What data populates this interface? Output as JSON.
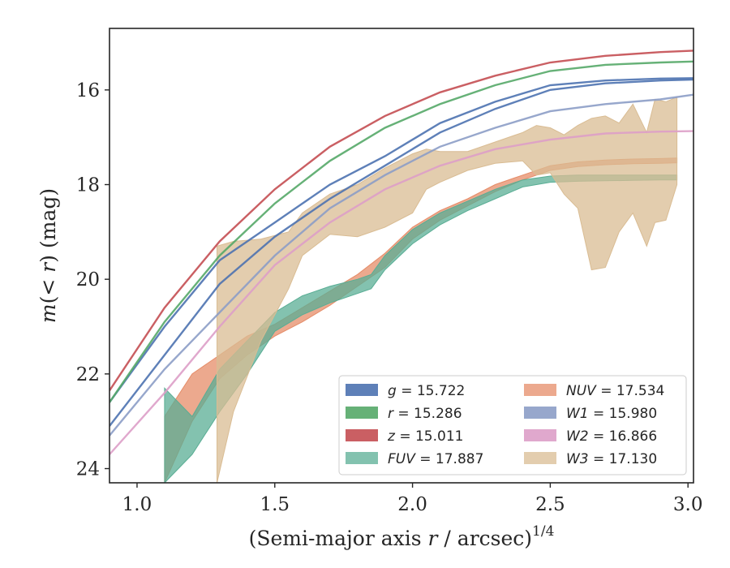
{
  "chart_data": {
    "type": "line",
    "title": "",
    "xlabel": "(Semi-major axis r / arcsec)",
    "xlabel_parts": {
      "pre": "(Semi-major axis ",
      "var": "r",
      "post": " / arcsec)",
      "sup": "1/4"
    },
    "ylabel": "m(< r) (mag)",
    "ylabel_parts": {
      "var": "m",
      "mid": "(< ",
      "var2": "r",
      "post": ") (mag)"
    },
    "xlim": [
      0.9,
      3.02
    ],
    "ylim": [
      24.3,
      14.7
    ],
    "y_inverted": true,
    "xticks": [
      1.0,
      1.5,
      2.0,
      2.5,
      3.0
    ],
    "xtick_labels": [
      "1.0",
      "1.5",
      "2.0",
      "2.5",
      "3.0"
    ],
    "yticks": [
      16,
      18,
      20,
      22,
      24
    ],
    "ytick_labels": [
      "16",
      "18",
      "20",
      "22",
      "24"
    ],
    "grid": false,
    "legend_position": "lower-right",
    "legend_columns": 2,
    "series": [
      {
        "name": "g",
        "legend_label": "g = 15.722",
        "legend_var": "g",
        "legend_value": "= 15.722",
        "color": "#4c72b0",
        "band": false,
        "x": [
          0.9,
          1.1,
          1.3,
          1.5,
          1.7,
          1.9,
          2.1,
          2.3,
          2.5,
          2.7,
          2.9,
          3.02
        ],
        "y": [
          23.1,
          21.6,
          20.1,
          19.1,
          18.3,
          17.6,
          16.9,
          16.4,
          16.0,
          15.86,
          15.8,
          15.78
        ]
      },
      {
        "name": "g-outer",
        "color": "#4c72b0",
        "band": false,
        "in_legend": false,
        "x": [
          0.9,
          1.1,
          1.3,
          1.5,
          1.7,
          1.9,
          2.1,
          2.3,
          2.5,
          2.7,
          2.9,
          3.02
        ],
        "y": [
          22.6,
          21.0,
          19.6,
          18.8,
          18.0,
          17.4,
          16.7,
          16.25,
          15.9,
          15.8,
          15.76,
          15.75
        ]
      },
      {
        "name": "r",
        "legend_label": "r = 15.286",
        "legend_var": "r",
        "legend_value": "= 15.286",
        "color": "#55a868",
        "band": false,
        "x": [
          0.9,
          1.1,
          1.3,
          1.5,
          1.7,
          1.9,
          2.1,
          2.3,
          2.5,
          2.7,
          2.9,
          3.02
        ],
        "y": [
          22.6,
          20.9,
          19.5,
          18.4,
          17.5,
          16.8,
          16.3,
          15.9,
          15.6,
          15.47,
          15.42,
          15.4
        ]
      },
      {
        "name": "z",
        "legend_label": "z = 15.011",
        "legend_var": "z",
        "legend_value": "= 15.011",
        "color": "#c44e52",
        "band": false,
        "x": [
          0.9,
          1.1,
          1.3,
          1.5,
          1.7,
          1.9,
          2.1,
          2.3,
          2.5,
          2.7,
          2.9,
          3.02
        ],
        "y": [
          22.35,
          20.6,
          19.2,
          18.1,
          17.2,
          16.55,
          16.05,
          15.7,
          15.42,
          15.28,
          15.2,
          15.17
        ]
      },
      {
        "name": "W1",
        "legend_label": "W1 = 15.980",
        "legend_var": "W1",
        "legend_value": "= 15.980",
        "color": "#8c9dc6",
        "band": false,
        "x": [
          0.9,
          1.1,
          1.3,
          1.5,
          1.7,
          1.9,
          2.1,
          2.3,
          2.5,
          2.7,
          2.9,
          3.02
        ],
        "y": [
          23.3,
          21.9,
          20.7,
          19.5,
          18.5,
          17.8,
          17.2,
          16.8,
          16.45,
          16.3,
          16.2,
          16.1
        ]
      },
      {
        "name": "W2",
        "legend_label": "W2 = 16.866",
        "legend_var": "W2",
        "legend_value": "= 16.866",
        "color": "#dd9fc8",
        "band": false,
        "x": [
          0.9,
          1.1,
          1.3,
          1.5,
          1.7,
          1.9,
          2.1,
          2.3,
          2.5,
          2.7,
          2.9,
          3.02
        ],
        "y": [
          23.7,
          22.4,
          21.0,
          19.7,
          18.8,
          18.1,
          17.6,
          17.25,
          17.05,
          16.92,
          16.88,
          16.87
        ]
      },
      {
        "name": "NUV",
        "legend_label": "NUV = 17.534",
        "legend_var": "NUV",
        "legend_value": "= 17.534",
        "color": "#e58c68",
        "band": true,
        "x": [
          1.1,
          1.2,
          1.3,
          1.4,
          1.5,
          1.6,
          1.7,
          1.8,
          1.9,
          2.0,
          2.1,
          2.2,
          2.3,
          2.4,
          2.5,
          2.6,
          2.7,
          2.8,
          2.9,
          2.96
        ],
        "y_low": [
          24.3,
          23.0,
          22.1,
          21.6,
          21.2,
          20.9,
          20.55,
          20.15,
          19.75,
          19.15,
          18.75,
          18.45,
          18.15,
          17.9,
          17.7,
          17.62,
          17.58,
          17.56,
          17.55,
          17.54
        ],
        "y_high": [
          22.9,
          22.0,
          21.6,
          21.2,
          20.95,
          20.6,
          20.25,
          19.9,
          19.45,
          18.9,
          18.55,
          18.3,
          18.0,
          17.8,
          17.6,
          17.52,
          17.48,
          17.46,
          17.45,
          17.44
        ]
      },
      {
        "name": "FUV",
        "legend_label": "FUV = 17.887",
        "legend_var": "FUV",
        "legend_value": "= 17.887",
        "color": "#59ad94",
        "band": true,
        "x": [
          1.1,
          1.2,
          1.3,
          1.4,
          1.5,
          1.6,
          1.7,
          1.8,
          1.85,
          1.9,
          2.0,
          2.1,
          2.2,
          2.3,
          2.4,
          2.5,
          2.6,
          2.7,
          2.8,
          2.9,
          2.96
        ],
        "y_low": [
          24.3,
          23.7,
          22.8,
          22.0,
          21.1,
          20.75,
          20.5,
          20.3,
          20.2,
          19.8,
          19.25,
          18.85,
          18.55,
          18.3,
          18.05,
          17.95,
          17.93,
          17.92,
          17.91,
          17.9,
          17.9
        ],
        "y_high": [
          22.3,
          22.9,
          21.9,
          21.3,
          20.7,
          20.35,
          20.15,
          20.0,
          19.9,
          19.5,
          18.95,
          18.6,
          18.35,
          18.1,
          17.9,
          17.82,
          17.8,
          17.8,
          17.8,
          17.8,
          17.8
        ]
      },
      {
        "name": "W3",
        "legend_label": "W3 = 17.130",
        "legend_var": "W3",
        "legend_value": "= 17.130",
        "color": "#d9bc93",
        "band": true,
        "x": [
          1.29,
          1.35,
          1.45,
          1.55,
          1.6,
          1.7,
          1.8,
          1.9,
          2.0,
          2.05,
          2.1,
          2.2,
          2.3,
          2.4,
          2.45,
          2.5,
          2.55,
          2.6,
          2.65,
          2.7,
          2.75,
          2.8,
          2.85,
          2.88,
          2.92,
          2.96
        ],
        "y_low": [
          24.3,
          22.8,
          21.3,
          20.2,
          19.5,
          19.05,
          19.1,
          18.9,
          18.6,
          18.1,
          17.95,
          17.7,
          17.55,
          17.5,
          17.8,
          17.75,
          18.2,
          18.5,
          19.8,
          19.75,
          19.0,
          18.6,
          19.3,
          18.8,
          18.75,
          18.0
        ],
        "y_high": [
          19.3,
          19.2,
          19.15,
          19.0,
          18.6,
          18.2,
          18.0,
          17.65,
          17.35,
          17.25,
          17.3,
          17.3,
          17.1,
          16.9,
          16.75,
          16.8,
          16.95,
          16.75,
          16.6,
          16.55,
          16.7,
          16.3,
          16.9,
          16.2,
          16.25,
          16.15
        ]
      }
    ],
    "legend_order": [
      "g",
      "r",
      "z",
      "FUV",
      "NUV",
      "W1",
      "W2",
      "W3"
    ]
  }
}
